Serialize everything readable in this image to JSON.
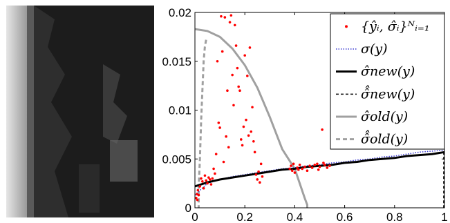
{
  "photo": {
    "description": "",
    "tones": [
      "#1a1a1a",
      "#2a2a2a",
      "#8c8c8c",
      "#d9d9d9"
    ]
  },
  "chart_data": {
    "type": "scatter",
    "xlim": [
      0,
      1
    ],
    "ylim": [
      0,
      0.02
    ],
    "x_ticks": [
      0,
      0.2,
      0.4,
      0.6,
      0.8,
      1
    ],
    "x_tick_labels": [
      "0",
      "0.2",
      "0.4",
      "0.6",
      "0.8",
      "1"
    ],
    "y_ticks": [
      0,
      0.005,
      0.01,
      0.015,
      0.02
    ],
    "y_tick_labels": [
      "0",
      "0.005",
      "0.01",
      "0.015",
      "0.02"
    ],
    "grid": false,
    "legend_position": "top-right",
    "legend": [
      {
        "id": "samples",
        "label": "{ŷᵢ, σ̂ᵢ}ᴺᵢ₌₁",
        "style": "red-dot"
      },
      {
        "id": "sigma",
        "label": "σ(y)",
        "style": "blue-dotted"
      },
      {
        "id": "sigma_new",
        "label": "σ̂new(y)",
        "style": "black-solid"
      },
      {
        "id": "sigma_new_hat",
        "label": "σ̂̂new(y)",
        "style": "black-dashed"
      },
      {
        "id": "sigma_old",
        "label": "σ̂old(y)",
        "style": "gray-solid"
      },
      {
        "id": "sigma_old_hat",
        "label": "σ̂̂old(y)",
        "style": "gray-dashed"
      }
    ],
    "colors": {
      "samples": "#ff0000",
      "sigma": "#3b3bd0",
      "sigma_new": "#000000",
      "sigma_old": "#a0a0a0"
    },
    "series": [
      {
        "id": "sigma",
        "x": [
          0.0,
          0.05,
          0.1,
          0.15,
          0.2,
          0.25,
          0.3,
          0.35,
          0.4,
          0.45,
          0.5,
          0.55,
          0.6,
          0.65,
          0.7,
          0.75,
          0.8,
          0.85,
          0.9,
          0.95,
          1.0
        ],
        "y": [
          0.0013,
          0.0025,
          0.0029,
          0.0032,
          0.0034,
          0.0036,
          0.0038,
          0.004,
          0.0041,
          0.0043,
          0.0044,
          0.0046,
          0.0047,
          0.0049,
          0.005,
          0.0052,
          0.0053,
          0.0055,
          0.0057,
          0.0058,
          0.0059
        ]
      },
      {
        "id": "sigma_new",
        "x": [
          0.0,
          0.05,
          0.1,
          0.15,
          0.2,
          0.25,
          0.3,
          0.35,
          0.4,
          0.45,
          0.5,
          0.55,
          0.6,
          0.65,
          0.7,
          0.75,
          0.8,
          0.85,
          0.9,
          0.95,
          1.0
        ],
        "y": [
          0.0022,
          0.0026,
          0.0029,
          0.0031,
          0.0033,
          0.0035,
          0.0037,
          0.0039,
          0.004,
          0.0042,
          0.0043,
          0.0044,
          0.0046,
          0.0047,
          0.0049,
          0.005,
          0.0051,
          0.0053,
          0.0054,
          0.0055,
          0.0057
        ]
      },
      {
        "id": "sigma_new_hat",
        "x": [
          0.997,
          0.997,
          0.997
        ],
        "y": [
          0.0057,
          0.003,
          0.0
        ]
      },
      {
        "id": "sigma_old",
        "x": [
          0.0,
          0.05,
          0.1,
          0.15,
          0.2,
          0.25,
          0.3,
          0.35,
          0.4,
          0.42,
          0.44,
          0.45,
          0.45
        ],
        "y": [
          0.0183,
          0.0181,
          0.0175,
          0.0163,
          0.0146,
          0.0123,
          0.0093,
          0.006,
          0.004,
          0.0025,
          0.001,
          0.0003,
          0.0
        ]
      },
      {
        "id": "sigma_old_hat",
        "x": [
          0.045,
          0.04,
          0.035,
          0.03,
          0.025,
          0.02,
          0.015,
          0.015
        ],
        "y": [
          0.0172,
          0.0165,
          0.015,
          0.012,
          0.009,
          0.005,
          0.002,
          0.0
        ]
      }
    ],
    "points": [
      [
        0.005,
        0.001
      ],
      [
        0.008,
        0.0014
      ],
      [
        0.01,
        0.0008
      ],
      [
        0.012,
        0.0018
      ],
      [
        0.015,
        0.0013
      ],
      [
        0.02,
        0.0022
      ],
      [
        0.025,
        0.003
      ],
      [
        0.03,
        0.0027
      ],
      [
        0.035,
        0.002
      ],
      [
        0.04,
        0.0033
      ],
      [
        0.045,
        0.0028
      ],
      [
        0.05,
        0.0025
      ],
      [
        0.055,
        0.0031
      ],
      [
        0.06,
        0.0029
      ],
      [
        0.065,
        0.0024
      ],
      [
        0.07,
        0.003
      ],
      [
        0.075,
        0.004
      ],
      [
        0.08,
        0.0035
      ],
      [
        0.085,
        0.0055
      ],
      [
        0.09,
        0.015
      ],
      [
        0.095,
        0.0087
      ],
      [
        0.1,
        0.0082
      ],
      [
        0.105,
        0.0196
      ],
      [
        0.11,
        0.016
      ],
      [
        0.115,
        0.0047
      ],
      [
        0.12,
        0.0195
      ],
      [
        0.125,
        0.0073
      ],
      [
        0.13,
        0.012
      ],
      [
        0.135,
        0.0062
      ],
      [
        0.14,
        0.019
      ],
      [
        0.145,
        0.0197
      ],
      [
        0.15,
        0.0136
      ],
      [
        0.155,
        0.0105
      ],
      [
        0.16,
        0.0187
      ],
      [
        0.165,
        0.0166
      ],
      [
        0.17,
        0.0143
      ],
      [
        0.175,
        0.0124
      ],
      [
        0.18,
        0.012
      ],
      [
        0.185,
        0.007
      ],
      [
        0.19,
        0.0064
      ],
      [
        0.195,
        0.0083
      ],
      [
        0.2,
        0.0156
      ],
      [
        0.205,
        0.009
      ],
      [
        0.21,
        0.0135
      ],
      [
        0.215,
        0.0074
      ],
      [
        0.22,
        0.0164
      ],
      [
        0.225,
        0.0078
      ],
      [
        0.23,
        0.0103
      ],
      [
        0.235,
        0.0068
      ],
      [
        0.24,
        0.0057
      ],
      [
        0.245,
        0.0034
      ],
      [
        0.25,
        0.0029
      ],
      [
        0.255,
        0.0037
      ],
      [
        0.26,
        0.0026
      ],
      [
        0.265,
        0.0045
      ],
      [
        0.27,
        0.0032
      ],
      [
        0.38,
        0.004
      ],
      [
        0.385,
        0.0043
      ],
      [
        0.39,
        0.0038
      ],
      [
        0.395,
        0.0045
      ],
      [
        0.4,
        0.0036
      ],
      [
        0.41,
        0.0041
      ],
      [
        0.415,
        0.0039
      ],
      [
        0.42,
        0.0044
      ],
      [
        0.43,
        0.004
      ],
      [
        0.44,
        0.0042
      ],
      [
        0.45,
        0.0038
      ],
      [
        0.46,
        0.0043
      ],
      [
        0.47,
        0.0041
      ],
      [
        0.48,
        0.0044
      ],
      [
        0.49,
        0.0045
      ],
      [
        0.495,
        0.0039
      ],
      [
        0.5,
        0.0042
      ],
      [
        0.51,
        0.008
      ],
      [
        0.515,
        0.0046
      ],
      [
        0.52,
        0.0044
      ],
      [
        0.53,
        0.0041
      ],
      [
        0.54,
        0.0043
      ]
    ]
  }
}
